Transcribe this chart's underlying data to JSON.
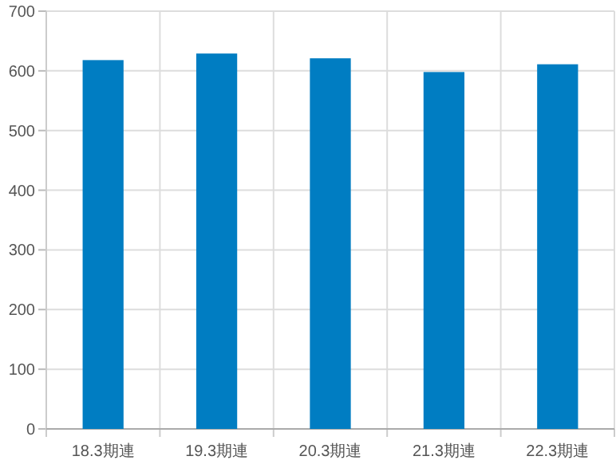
{
  "chart_data": {
    "type": "bar",
    "categories": [
      "18.3期連",
      "19.3期連",
      "20.3期連",
      "21.3期連",
      "22.3期連"
    ],
    "values": [
      618,
      629,
      621,
      598,
      611
    ],
    "color": "#007dc2",
    "ylim": [
      0,
      700
    ],
    "yticks": [
      0,
      100,
      200,
      300,
      400,
      500,
      600,
      700
    ],
    "grid": true
  }
}
